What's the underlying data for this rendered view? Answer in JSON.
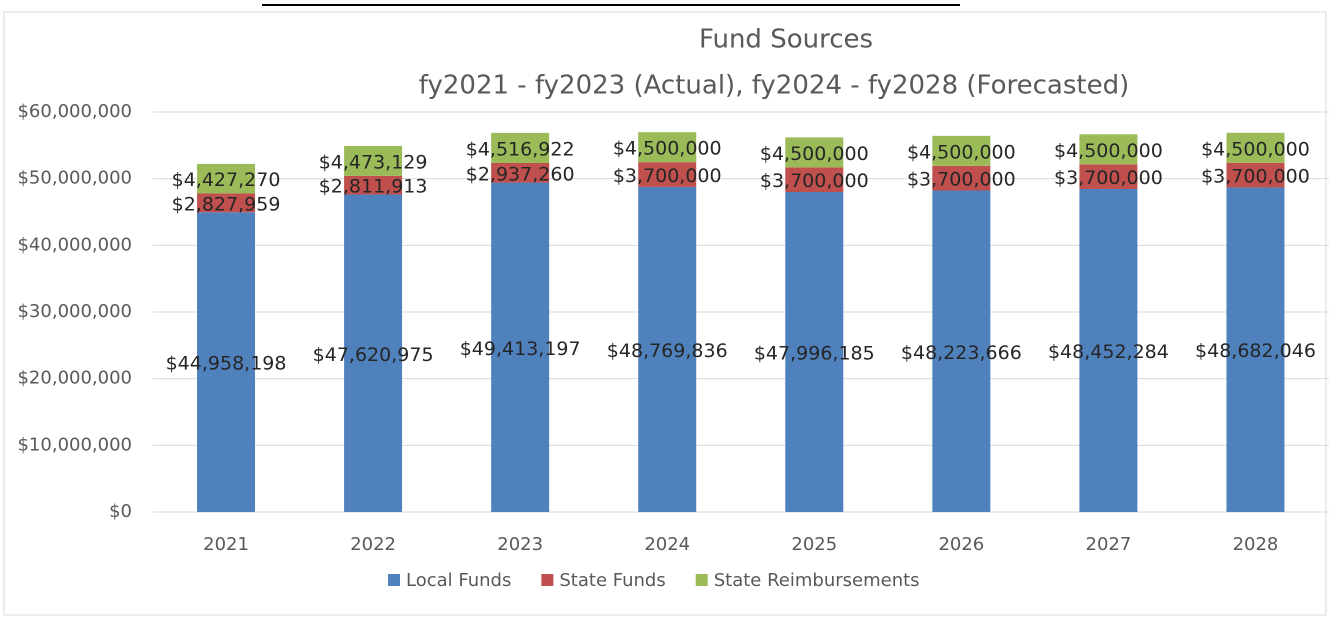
{
  "chart_data": {
    "type": "stacked_bar",
    "title": "Fund Sources",
    "subtitle": "fy2021 - fy2023 (Actual), fy2024 - fy2028 (Forecasted)",
    "categories": [
      "2021",
      "2022",
      "2023",
      "2024",
      "2025",
      "2026",
      "2027",
      "2028"
    ],
    "series": [
      {
        "name": "Local Funds",
        "color": "#4f81bd",
        "values": [
          44958198,
          47620975,
          49413197,
          48769836,
          47996185,
          48223666,
          48452284,
          48682046
        ],
        "value_labels": [
          "$44,958,198",
          "$47,620,975",
          "$49,413,197",
          "$48,769,836",
          "$47,996,185",
          "$48,223,666",
          "$48,452,284",
          "$48,682,046"
        ]
      },
      {
        "name": "State Funds",
        "color": "#c0504d",
        "values": [
          2827959,
          2811913,
          2937260,
          3700000,
          3700000,
          3700000,
          3700000,
          3700000
        ],
        "value_labels": [
          "$2,827,959",
          "$2,811,913",
          "$2,937,260",
          "$3,700,000",
          "$3,700,000",
          "$3,700,000",
          "$3,700,000",
          "$3,700,000"
        ]
      },
      {
        "name": "State Reimbursements",
        "color": "#9bbb59",
        "values": [
          4427270,
          4473129,
          4516922,
          4500000,
          4500000,
          4500000,
          4500000,
          4500000
        ],
        "value_labels": [
          "$4,427,270",
          "$4,473,129",
          "$4,516,922",
          "$4,500,000",
          "$4,500,000",
          "$4,500,000",
          "$4,500,000",
          "$4,500,000"
        ]
      }
    ],
    "ylim": [
      0,
      60000000
    ],
    "yticks": [
      {
        "value": 0,
        "label": "$0"
      },
      {
        "value": 10000000,
        "label": "$10,000,000"
      },
      {
        "value": 20000000,
        "label": "$20,000,000"
      },
      {
        "value": 30000000,
        "label": "$30,000,000"
      },
      {
        "value": 40000000,
        "label": "$40,000,000"
      },
      {
        "value": 50000000,
        "label": "$50,000,000"
      },
      {
        "value": 60000000,
        "label": "$60,000,000"
      }
    ],
    "grid": true,
    "legend": "bottom"
  }
}
